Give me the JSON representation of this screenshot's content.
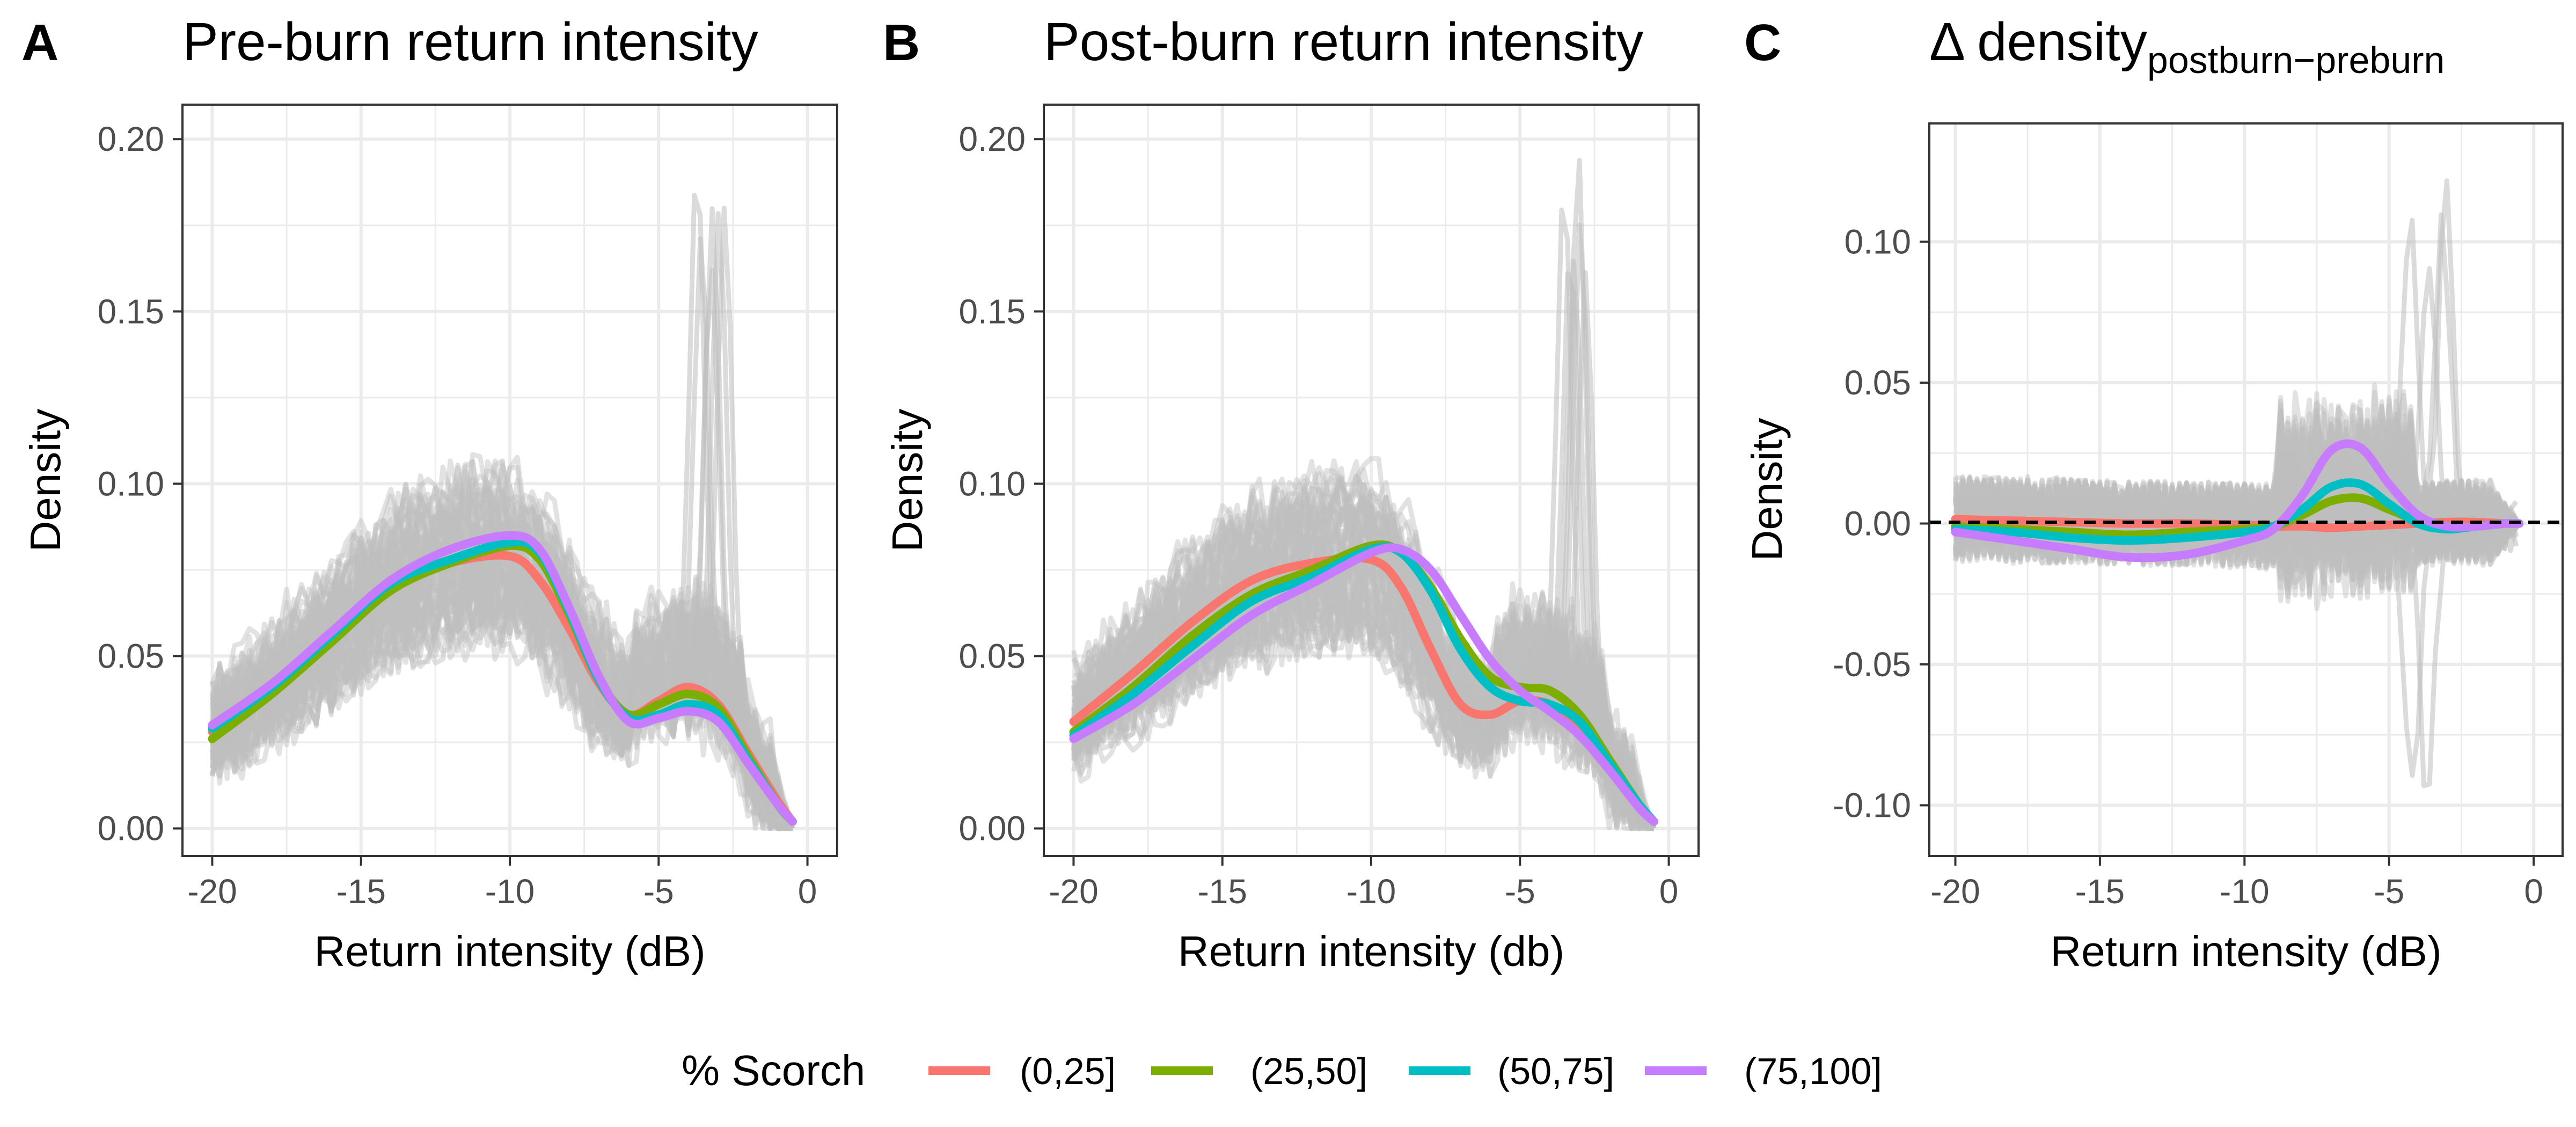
{
  "chart_data": [
    {
      "panel_letter": "A",
      "title": "Pre-burn return intensity",
      "type": "line",
      "xlabel": "Return intensity (dB)",
      "ylabel": "Density",
      "xlim": [
        -21,
        1
      ],
      "ylim": [
        -0.008,
        0.21
      ],
      "x_ticks": [
        -20,
        -15,
        -10,
        -5,
        0
      ],
      "x_tick_labels": [
        "-20",
        "-15",
        "-10",
        "-5",
        "0"
      ],
      "y_ticks": [
        0,
        0.05,
        0.1,
        0.15,
        0.2
      ],
      "y_tick_labels": [
        "0.00",
        "0.05",
        "0.10",
        "0.15",
        "0.20"
      ],
      "grid": true,
      "series": [
        {
          "name": "(0,25]",
          "x": [
            -20,
            -18,
            -16,
            -14,
            -12,
            -10,
            -9,
            -8,
            -7,
            -6,
            -5,
            -4,
            -3,
            -2,
            -1,
            -0.5
          ],
          "values": [
            0.028,
            0.04,
            0.055,
            0.07,
            0.077,
            0.079,
            0.072,
            0.058,
            0.042,
            0.033,
            0.037,
            0.041,
            0.036,
            0.022,
            0.008,
            0.002
          ]
        },
        {
          "name": "(25,50]",
          "x": [
            -20,
            -18,
            -16,
            -14,
            -12,
            -10,
            -9,
            -8,
            -7,
            -6,
            -5,
            -4,
            -3,
            -2,
            -1,
            -0.5
          ],
          "values": [
            0.026,
            0.039,
            0.054,
            0.069,
            0.077,
            0.082,
            0.078,
            0.062,
            0.043,
            0.033,
            0.036,
            0.039,
            0.035,
            0.021,
            0.007,
            0.002
          ]
        },
        {
          "name": "(50,75]",
          "x": [
            -20,
            -18,
            -16,
            -14,
            -12,
            -10,
            -9,
            -8,
            -7,
            -6,
            -5,
            -4,
            -3,
            -2,
            -1,
            -0.5
          ],
          "values": [
            0.029,
            0.041,
            0.056,
            0.071,
            0.078,
            0.083,
            0.08,
            0.063,
            0.043,
            0.032,
            0.033,
            0.036,
            0.033,
            0.02,
            0.007,
            0.002
          ]
        },
        {
          "name": "(75,100]",
          "x": [
            -20,
            -18,
            -16,
            -14,
            -12,
            -10,
            -9,
            -8,
            -7,
            -6,
            -5,
            -4,
            -3,
            -2,
            -1,
            -0.5
          ],
          "values": [
            0.03,
            0.042,
            0.057,
            0.072,
            0.081,
            0.085,
            0.081,
            0.064,
            0.044,
            0.031,
            0.032,
            0.034,
            0.031,
            0.019,
            0.007,
            0.002
          ]
        }
      ]
    },
    {
      "panel_letter": "B",
      "title": "Post-burn return intensity",
      "type": "line",
      "xlabel": "Return intensity (db)",
      "ylabel": "Density",
      "xlim": [
        -21,
        1
      ],
      "ylim": [
        -0.008,
        0.21
      ],
      "x_ticks": [
        -20,
        -15,
        -10,
        -5,
        0
      ],
      "x_tick_labels": [
        "-20",
        "-15",
        "-10",
        "-5",
        "0"
      ],
      "y_ticks": [
        0,
        0.05,
        0.1,
        0.15,
        0.2
      ],
      "y_tick_labels": [
        "0.00",
        "0.05",
        "0.10",
        "0.15",
        "0.20"
      ],
      "grid": true,
      "series": [
        {
          "name": "(0,25]",
          "x": [
            -20,
            -18,
            -16,
            -14,
            -12,
            -10,
            -9,
            -8,
            -7,
            -6,
            -5,
            -4,
            -3,
            -2,
            -1,
            -0.5
          ],
          "values": [
            0.031,
            0.045,
            0.06,
            0.072,
            0.077,
            0.078,
            0.07,
            0.052,
            0.036,
            0.033,
            0.037,
            0.036,
            0.03,
            0.019,
            0.007,
            0.002
          ]
        },
        {
          "name": "(25,50]",
          "x": [
            -20,
            -18,
            -16,
            -14,
            -12,
            -10,
            -9,
            -8,
            -7,
            -6,
            -5,
            -4,
            -3,
            -2,
            -1,
            -0.5
          ],
          "values": [
            0.028,
            0.041,
            0.056,
            0.068,
            0.075,
            0.082,
            0.08,
            0.07,
            0.055,
            0.044,
            0.041,
            0.04,
            0.033,
            0.02,
            0.007,
            0.002
          ]
        },
        {
          "name": "(50,75]",
          "x": [
            -20,
            -18,
            -16,
            -14,
            -12,
            -10,
            -9,
            -8,
            -7,
            -6,
            -5,
            -4,
            -3,
            -2,
            -1,
            -0.5
          ],
          "values": [
            0.027,
            0.039,
            0.053,
            0.066,
            0.073,
            0.081,
            0.08,
            0.069,
            0.052,
            0.041,
            0.037,
            0.036,
            0.031,
            0.019,
            0.007,
            0.002
          ]
        },
        {
          "name": "(75,100]",
          "x": [
            -20,
            -18,
            -16,
            -14,
            -12,
            -10,
            -9,
            -8,
            -7,
            -6,
            -5,
            -4,
            -3,
            -2,
            -1,
            -0.5
          ],
          "values": [
            0.026,
            0.036,
            0.049,
            0.062,
            0.071,
            0.08,
            0.081,
            0.075,
            0.062,
            0.049,
            0.04,
            0.034,
            0.027,
            0.017,
            0.006,
            0.002
          ]
        }
      ]
    },
    {
      "panel_letter": "C",
      "title": "Δ density",
      "title_subscript": "postburn−preburn",
      "type": "line",
      "xlabel": "Return intensity (dB)",
      "ylabel": "Density",
      "xlim": [
        -20.9,
        1
      ],
      "ylim": [
        -0.118,
        0.142
      ],
      "x_ticks": [
        -20,
        -15,
        -10,
        -5,
        0
      ],
      "x_tick_labels": [
        "-20",
        "-15",
        "-10",
        "-5",
        "0"
      ],
      "y_ticks": [
        -0.1,
        -0.05,
        0,
        0.05,
        0.1
      ],
      "y_tick_labels": [
        "-0.10",
        "-0.05",
        "0.00",
        "0.05",
        "0.10"
      ],
      "reference_line": 0,
      "grid": true,
      "series": [
        {
          "name": "(0,25]",
          "x": [
            -20,
            -18,
            -16,
            -14,
            -12,
            -10,
            -9,
            -8,
            -7,
            -6,
            -5,
            -4,
            -3,
            -2,
            -1,
            -0.5
          ],
          "values": [
            0.0015,
            0.001,
            0.0005,
            0,
            0,
            -0.0005,
            -0.001,
            -0.001,
            -0.0015,
            -0.001,
            -0.0005,
            0,
            0.0005,
            0.0005,
            0,
            0
          ]
        },
        {
          "name": "(25,50]",
          "x": [
            -20,
            -18,
            -16,
            -14,
            -12,
            -10,
            -9,
            -8,
            -7,
            -6,
            -5,
            -4,
            -3,
            -2,
            -1,
            -0.5
          ],
          "values": [
            -0.001,
            -0.002,
            -0.003,
            -0.004,
            -0.003,
            -0.002,
            -0.001,
            0.003,
            0.008,
            0.009,
            0.005,
            0.001,
            -0.001,
            -0.001,
            0,
            0
          ]
        },
        {
          "name": "(50,75]",
          "x": [
            -20,
            -18,
            -16,
            -14,
            -12,
            -10,
            -9,
            -8,
            -7,
            -6,
            -5,
            -4,
            -3,
            -2,
            -1,
            -0.5
          ],
          "values": [
            -0.002,
            -0.003,
            -0.005,
            -0.006,
            -0.005,
            -0.003,
            -0.001,
            0.005,
            0.013,
            0.014,
            0.007,
            0,
            -0.002,
            -0.001,
            0,
            0
          ]
        },
        {
          "name": "(75,100]",
          "x": [
            -20,
            -18,
            -16,
            -14,
            -12,
            -10,
            -9,
            -8,
            -7,
            -6,
            -5,
            -4,
            -3,
            -2,
            -1,
            -0.5
          ],
          "values": [
            -0.003,
            -0.006,
            -0.009,
            -0.012,
            -0.011,
            -0.006,
            -0.002,
            0.01,
            0.026,
            0.027,
            0.014,
            0.003,
            -0.001,
            -0.001,
            0,
            0
          ]
        }
      ]
    }
  ],
  "legend": {
    "title": "% Scorch",
    "placement": "bottom",
    "items": [
      {
        "label": "(0,25]",
        "color": "#F8766D"
      },
      {
        "label": "(25,50]",
        "color": "#7CAE00"
      },
      {
        "label": "(50,75]",
        "color": "#00BFC4"
      },
      {
        "label": "(75,100]",
        "color": "#C77CFF"
      }
    ]
  },
  "colors": {
    "background_curves": "#BEBEBE",
    "grid": "#EBEBEB",
    "panel_border": "#333333",
    "text": "#000000",
    "tick_text": "#4D4D4D"
  }
}
